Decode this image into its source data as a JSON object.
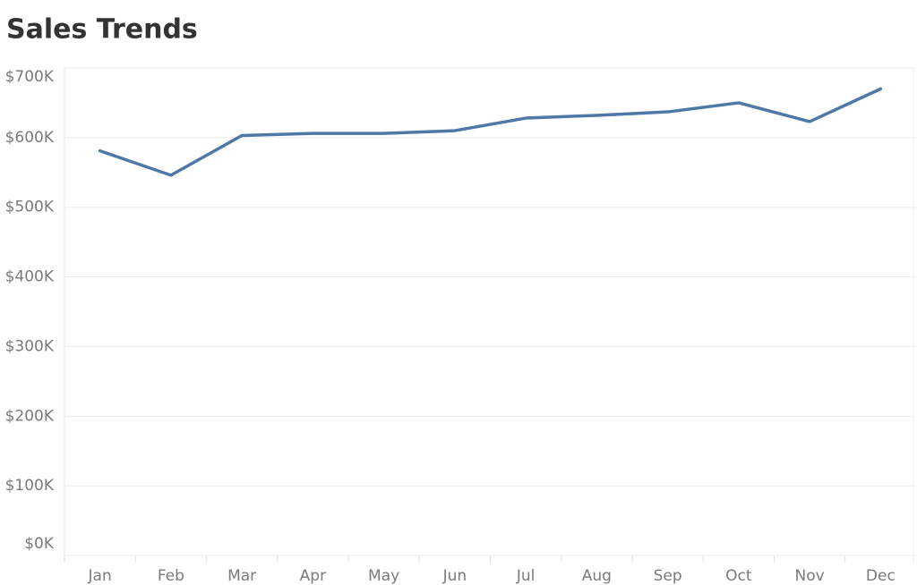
{
  "chart_data": {
    "type": "line",
    "title": "Sales Trends",
    "categories": [
      "Jan",
      "Feb",
      "Mar",
      "Apr",
      "May",
      "Jun",
      "Jul",
      "Aug",
      "Sep",
      "Oct",
      "Nov",
      "Dec"
    ],
    "values": [
      581000,
      546000,
      603000,
      606000,
      606000,
      610000,
      628000,
      632000,
      637000,
      650000,
      623000,
      670000
    ],
    "color": "#4e79a7",
    "ylim": [
      0,
      700000
    ],
    "yticks": [
      {
        "value": 0,
        "label": "$0K"
      },
      {
        "value": 100000,
        "label": "$100K"
      },
      {
        "value": 200000,
        "label": "$200K"
      },
      {
        "value": 300000,
        "label": "$300K"
      },
      {
        "value": 400000,
        "label": "$400K"
      },
      {
        "value": 500000,
        "label": "$500K"
      },
      {
        "value": 600000,
        "label": "$600K"
      },
      {
        "value": 700000,
        "label": "$700K"
      }
    ],
    "grid": true
  }
}
